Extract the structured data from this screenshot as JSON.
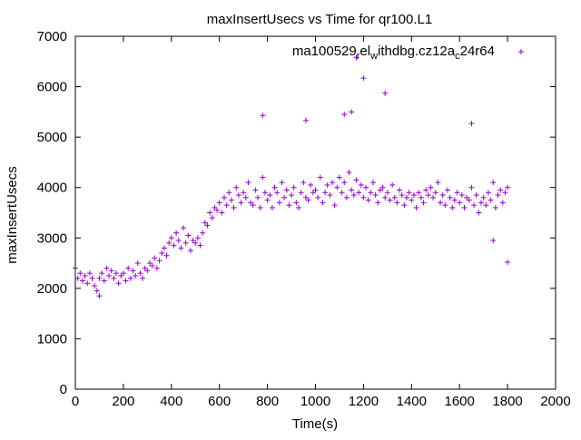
{
  "chart_data": {
    "type": "scatter",
    "title": "maxInsertUsecs vs Time for qr100.L1",
    "xlabel": "Time(s)",
    "ylabel": "maxInsertUsecs",
    "xlim": [
      0,
      2000
    ],
    "ylim": [
      0,
      7000
    ],
    "xticks": [
      0,
      200,
      400,
      600,
      800,
      1000,
      1200,
      1400,
      1600,
      1800,
      2000
    ],
    "yticks": [
      0,
      1000,
      2000,
      3000,
      4000,
      5000,
      6000,
      7000
    ],
    "grid": false,
    "legend_placement": "top-right",
    "series": [
      {
        "name": "ma100529_rel_withdbg.cz12a_c24r64",
        "color": "#9400d3",
        "marker": "+",
        "x_start": 0,
        "x_step": 10,
        "y": [
          2400,
          2200,
          2300,
          2150,
          2250,
          2100,
          2300,
          2200,
          2050,
          1950,
          2200,
          2300,
          2150,
          2400,
          2250,
          2350,
          2200,
          2300,
          2100,
          2250,
          2300,
          2150,
          2400,
          2200,
          2350,
          2250,
          2500,
          2300,
          2200,
          2400,
          2350,
          2500,
          2450,
          2600,
          2400,
          2550,
          2700,
          2800,
          2650,
          2900,
          3000,
          2850,
          3100,
          2950,
          2800,
          3200,
          2900,
          3050,
          2750,
          2950,
          2900,
          3000,
          2850,
          3100,
          3300,
          3250,
          3500,
          3400,
          3600,
          3550,
          3700,
          3500,
          3800,
          3650,
          3900,
          3750,
          3600,
          4000,
          3850,
          3700,
          3900,
          3800,
          4100,
          3700,
          3650,
          3950,
          3800,
          3600,
          4200,
          3900,
          3750,
          3850,
          3600,
          4000,
          3900,
          3700,
          4100,
          3800,
          3950,
          3650,
          3850,
          4000,
          3700,
          3600,
          3900,
          4100,
          3800,
          3750,
          4050,
          3900,
          3950,
          3800,
          4200,
          3700,
          3900,
          4050,
          3850,
          4100,
          3650,
          4000,
          4200,
          3900,
          4100,
          3800,
          4300,
          3950,
          3850,
          4150,
          3900,
          4050,
          3800,
          4000,
          3750,
          3900,
          4100,
          3850,
          3700,
          3950,
          4000,
          3800,
          3900,
          3750,
          4050,
          3800,
          3700,
          3950,
          3850,
          3650,
          3800,
          3900,
          3750,
          3850,
          3600,
          3900,
          3800,
          3700,
          3950,
          3850,
          4000,
          3800,
          3900,
          4100,
          3700,
          3850,
          3650,
          3950,
          3800,
          3600,
          3750,
          3900,
          3700,
          3850,
          3600,
          3800,
          3750,
          4000,
          3650,
          3850,
          3500,
          3700,
          3800,
          3650,
          3900,
          3750,
          4100,
          3600,
          3850,
          3950,
          3700,
          3900,
          4000
        ],
        "outliers": [
          [
            1170,
            6580
          ],
          [
            1200,
            6170
          ],
          [
            1290,
            5870
          ],
          [
            1150,
            5500
          ],
          [
            780,
            5430
          ],
          [
            1120,
            5450
          ],
          [
            960,
            5330
          ],
          [
            1650,
            5270
          ],
          [
            1800,
            2520
          ],
          [
            100,
            1850
          ],
          [
            1740,
            2950
          ]
        ]
      }
    ]
  }
}
